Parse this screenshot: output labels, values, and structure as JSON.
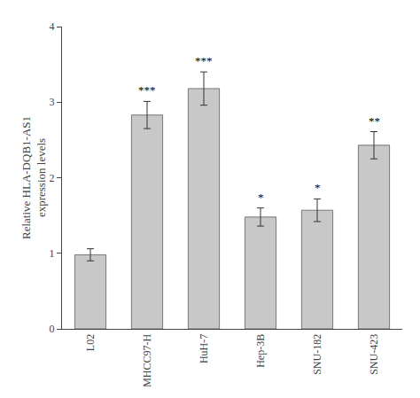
{
  "chart_data": {
    "type": "bar",
    "categories": [
      "L02",
      "MHCC97-H",
      "HuH-7",
      "Hep-3B",
      "SNU-182",
      "SNU-423"
    ],
    "values": [
      0.98,
      2.83,
      3.18,
      1.48,
      1.57,
      2.43
    ],
    "errors": [
      0.08,
      0.18,
      0.22,
      0.12,
      0.15,
      0.18
    ],
    "annotations": [
      {
        "x": "MHCC97-H",
        "text": "***"
      },
      {
        "x": "HuH-7",
        "text": "***"
      },
      {
        "x": "Hep-3B",
        "text": "*"
      },
      {
        "x": "SNU-182",
        "text": "*"
      },
      {
        "x": "SNU-423",
        "text": "**"
      }
    ],
    "color": "#c8c8c8",
    "ylabel": "Relative HLA-DQB1-AS1\nexpression levels",
    "ylim": [
      0,
      4
    ],
    "yticks": [
      0,
      1,
      2,
      3,
      4
    ],
    "grid": false
  }
}
